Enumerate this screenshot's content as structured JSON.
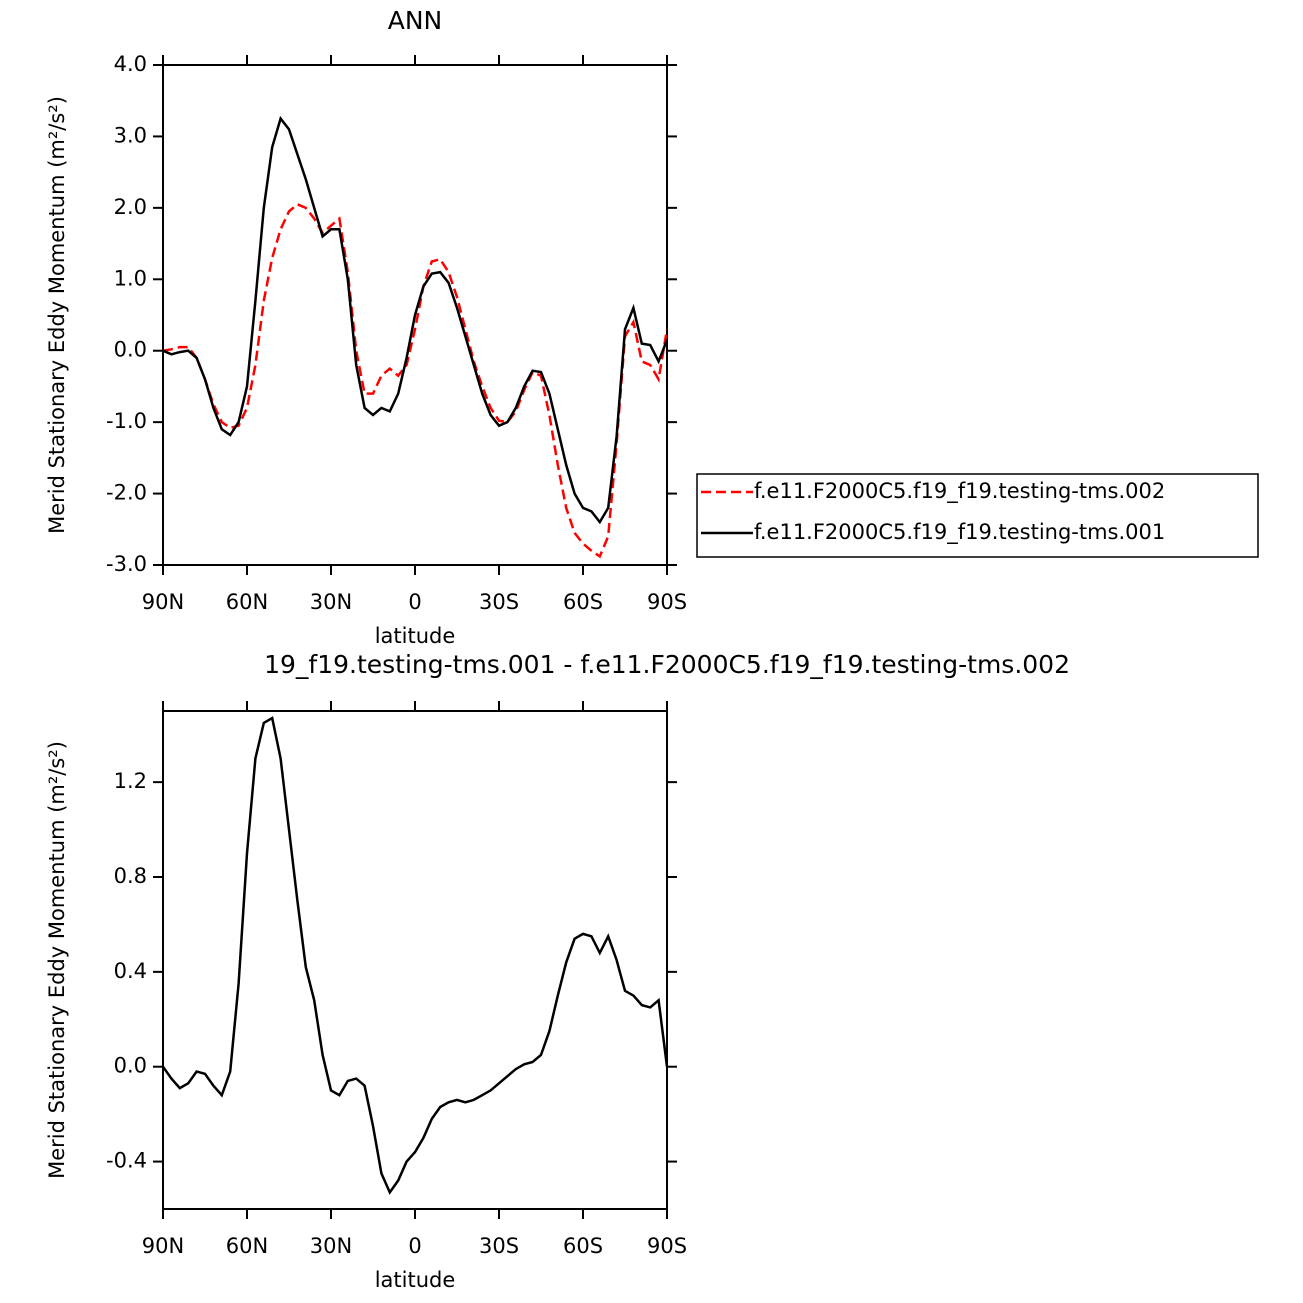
{
  "chart_data": [
    {
      "type": "line",
      "title": "ANN",
      "xlabel": "latitude",
      "ylabel": "Merid Stationary Eddy Momentum (m²/s²)",
      "x": [
        90,
        87,
        84,
        81,
        78,
        75,
        72,
        69,
        66,
        63,
        60,
        57,
        54,
        51,
        48,
        45,
        42,
        39,
        36,
        33,
        30,
        27,
        24,
        21,
        18,
        15,
        12,
        9,
        6,
        3,
        0,
        -3,
        -6,
        -9,
        -12,
        -15,
        -18,
        -21,
        -24,
        -27,
        -30,
        -33,
        -36,
        -39,
        -42,
        -45,
        -48,
        -51,
        -54,
        -57,
        -60,
        -63,
        -66,
        -69,
        -72,
        -75,
        -78,
        -81,
        -84,
        -87,
        -90
      ],
      "xlim": [
        90,
        -90
      ],
      "xticks": [
        {
          "value": 90,
          "label": "90N"
        },
        {
          "value": 60,
          "label": "60N"
        },
        {
          "value": 30,
          "label": "30N"
        },
        0,
        {
          "value": -30,
          "label": "30S"
        },
        {
          "value": -60,
          "label": "60S"
        },
        {
          "value": -90,
          "label": "90S"
        }
      ],
      "ylim": [
        -3,
        4
      ],
      "yticks": [
        {
          "value": 4,
          "label": "4.0"
        },
        {
          "value": 3,
          "label": "3.0"
        },
        {
          "value": 2,
          "label": "2.0"
        },
        {
          "value": 1,
          "label": "1.0"
        },
        {
          "value": 0,
          "label": "0.0"
        },
        {
          "value": -1,
          "label": "-1.0"
        },
        {
          "value": -2,
          "label": "-2.0"
        },
        {
          "value": -3,
          "label": "-3.0"
        }
      ],
      "legend": "right",
      "series": [
        {
          "name": "f.e11.F2000C5.f19_f19.testing-tms.002",
          "color": "#ff0000",
          "line_style": "dashed",
          "values": [
            0,
            0.02,
            0.05,
            0.05,
            -0.1,
            -0.4,
            -0.75,
            -1.0,
            -1.08,
            -1.05,
            -0.8,
            -0.2,
            0.7,
            1.3,
            1.7,
            1.95,
            2.05,
            2.0,
            1.85,
            1.65,
            1.75,
            1.85,
            1.1,
            0.0,
            -0.6,
            -0.6,
            -0.35,
            -0.25,
            -0.35,
            -0.2,
            0.3,
            0.9,
            1.25,
            1.28,
            1.1,
            0.75,
            0.3,
            -0.15,
            -0.5,
            -0.8,
            -0.98,
            -1.0,
            -0.85,
            -0.55,
            -0.3,
            -0.35,
            -0.9,
            -1.6,
            -2.2,
            -2.55,
            -2.7,
            -2.8,
            -2.88,
            -2.6,
            -1.3,
            0.2,
            0.4,
            -0.15,
            -0.2,
            -0.4,
            0.3
          ]
        },
        {
          "name": "f.e11.F2000C5.f19_f19.testing-tms.001",
          "color": "#000000",
          "line_style": "solid",
          "values": [
            0,
            -0.05,
            -0.02,
            0.0,
            -0.1,
            -0.4,
            -0.8,
            -1.1,
            -1.18,
            -1.0,
            -0.5,
            0.7,
            2.0,
            2.85,
            3.25,
            3.1,
            2.75,
            2.4,
            2.0,
            1.6,
            1.7,
            1.7,
            1.0,
            -0.2,
            -0.8,
            -0.9,
            -0.8,
            -0.85,
            -0.6,
            -0.1,
            0.5,
            0.9,
            1.08,
            1.1,
            0.95,
            0.6,
            0.2,
            -0.2,
            -0.6,
            -0.9,
            -1.05,
            -1.0,
            -0.8,
            -0.5,
            -0.28,
            -0.3,
            -0.6,
            -1.1,
            -1.6,
            -2.0,
            -2.2,
            -2.25,
            -2.4,
            -2.2,
            -1.2,
            0.3,
            0.6,
            0.1,
            0.08,
            -0.15,
            0.15
          ]
        }
      ]
    },
    {
      "type": "line",
      "title": "19_f19.testing-tms.001 - f.e11.F2000C5.f19_f19.testing-tms.002",
      "xlabel": "latitude",
      "ylabel": "Merid Stationary Eddy Momentum (m²/s²)",
      "x": [
        90,
        87,
        84,
        81,
        78,
        75,
        72,
        69,
        66,
        63,
        60,
        57,
        54,
        51,
        48,
        45,
        42,
        39,
        36,
        33,
        30,
        27,
        24,
        21,
        18,
        15,
        12,
        9,
        6,
        3,
        0,
        -3,
        -6,
        -9,
        -12,
        -15,
        -18,
        -21,
        -24,
        -27,
        -30,
        -33,
        -36,
        -39,
        -42,
        -45,
        -48,
        -51,
        -54,
        -57,
        -60,
        -63,
        -66,
        -69,
        -72,
        -75,
        -78,
        -81,
        -84,
        -87,
        -90
      ],
      "xlim": [
        90,
        -90
      ],
      "xticks": [
        {
          "value": 90,
          "label": "90N"
        },
        {
          "value": 60,
          "label": "60N"
        },
        {
          "value": 30,
          "label": "30N"
        },
        0,
        {
          "value": -30,
          "label": "30S"
        },
        {
          "value": -60,
          "label": "60S"
        },
        {
          "value": -90,
          "label": "90S"
        }
      ],
      "ylim": [
        -0.6,
        1.5
      ],
      "yticks": [
        {
          "value": 1.2,
          "label": "1.2"
        },
        0.8,
        0.4,
        {
          "value": 0,
          "label": "0.0"
        },
        -0.4
      ],
      "series": [
        {
          "color": "#000000",
          "line_style": "solid",
          "values": [
            0.0,
            -0.05,
            -0.09,
            -0.07,
            -0.02,
            -0.03,
            -0.08,
            -0.12,
            -0.02,
            0.35,
            0.9,
            1.3,
            1.45,
            1.47,
            1.3,
            1.0,
            0.7,
            0.42,
            0.28,
            0.05,
            -0.1,
            -0.12,
            -0.06,
            -0.05,
            -0.08,
            -0.25,
            -0.45,
            -0.53,
            -0.48,
            -0.4,
            -0.36,
            -0.3,
            -0.22,
            -0.17,
            -0.15,
            -0.14,
            -0.15,
            -0.14,
            -0.12,
            -0.1,
            -0.07,
            -0.04,
            -0.01,
            0.01,
            0.02,
            0.05,
            0.15,
            0.3,
            0.44,
            0.54,
            0.56,
            0.55,
            0.48,
            0.55,
            0.45,
            0.32,
            0.3,
            0.26,
            0.25,
            0.28,
            0.0
          ]
        }
      ]
    }
  ]
}
